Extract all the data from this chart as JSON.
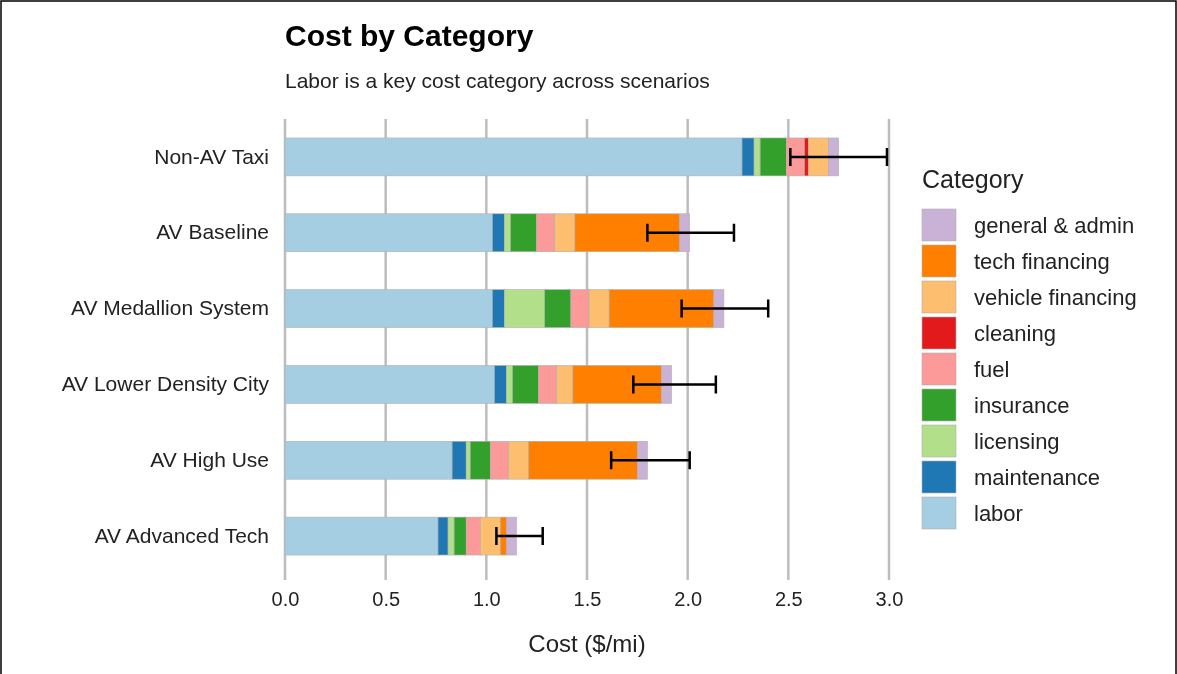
{
  "chart_data": {
    "type": "bar",
    "orientation": "horizontal",
    "stacked": true,
    "title": "Cost by Category",
    "subtitle": "Labor is a key cost category across scenarios",
    "xlabel": "Cost ($/mi)",
    "legend_title": "Category",
    "legend": "right",
    "grid": "x",
    "categories": [
      "Non-AV Taxi",
      "AV Baseline",
      "AV Medallion System",
      "AV Lower Density City",
      "AV High Use",
      "AV Advanced Tech"
    ],
    "xlim": [
      0,
      3
    ],
    "xticks": [
      {
        "value": 0,
        "label": "0.0"
      },
      {
        "value": 0.5,
        "label": "0.5"
      },
      {
        "value": 1,
        "label": "1.0"
      },
      {
        "value": 1.5,
        "label": "1.5"
      },
      {
        "value": 2,
        "label": "2.0"
      },
      {
        "value": 2.5,
        "label": "2.5"
      },
      {
        "value": 3,
        "label": "3.0"
      }
    ],
    "series": [
      {
        "name": "labor",
        "color": "#a6cee3",
        "values": [
          2.27,
          1.03,
          1.03,
          1.04,
          0.83,
          0.76
        ]
      },
      {
        "name": "maintenance",
        "color": "#1f78b4",
        "values": [
          0.06,
          0.06,
          0.06,
          0.06,
          0.07,
          0.05
        ]
      },
      {
        "name": "licensing",
        "color": "#b2df8a",
        "values": [
          0.03,
          0.03,
          0.2,
          0.03,
          0.02,
          0.03
        ]
      },
      {
        "name": "insurance",
        "color": "#33a02c",
        "values": [
          0.13,
          0.13,
          0.13,
          0.13,
          0.1,
          0.06
        ]
      },
      {
        "name": "fuel",
        "color": "#fb9a99",
        "values": [
          0.09,
          0.09,
          0.09,
          0.09,
          0.09,
          0.07
        ]
      },
      {
        "name": "cleaning",
        "color": "#e31a1c",
        "values": [
          0.02,
          0,
          0,
          0,
          0,
          0
        ]
      },
      {
        "name": "vehicle financing",
        "color": "#fdbf6f",
        "values": [
          0.1,
          0.1,
          0.1,
          0.08,
          0.1,
          0.1
        ]
      },
      {
        "name": "tech financing",
        "color": "#ff7f00",
        "values": [
          0,
          0.52,
          0.52,
          0.44,
          0.54,
          0.03
        ]
      },
      {
        "name": "general & admin",
        "color": "#cab2d6",
        "values": [
          0.05,
          0.05,
          0.05,
          0.05,
          0.05,
          0.05
        ],
        "errors": [
          [
            2.51,
            2.99
          ],
          [
            1.8,
            2.23
          ],
          [
            1.97,
            2.4
          ],
          [
            1.73,
            2.14
          ],
          [
            1.62,
            2.01
          ],
          [
            1.05,
            1.28
          ]
        ]
      }
    ]
  }
}
